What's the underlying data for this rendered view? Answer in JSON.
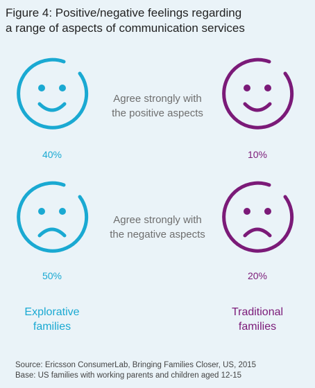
{
  "title": {
    "line1": "Figure 4: Positive/negative feelings regarding",
    "line2": "a range of aspects of communication services"
  },
  "colors": {
    "explorative": "#1aa9d2",
    "traditional": "#7b1a78",
    "label_gray": "#6e6e6e",
    "background": "#eaf3f8"
  },
  "chart_data": {
    "type": "table",
    "title": "Figure 4: Positive/negative feelings regarding a range of aspects of communication services",
    "categories": [
      "Agree strongly with the positive aspects",
      "Agree strongly with the negative aspects"
    ],
    "series": [
      {
        "name": "Explorative families",
        "values": [
          40,
          50
        ],
        "labels": [
          "40%",
          "50%"
        ],
        "icons": [
          "smiley-icon",
          "frowny-icon"
        ]
      },
      {
        "name": "Traditional families",
        "values": [
          10,
          20
        ],
        "labels": [
          "10%",
          "20%"
        ],
        "icons": [
          "smiley-icon",
          "frowny-icon"
        ]
      }
    ]
  },
  "rows": [
    {
      "label_line1": "Agree strongly with",
      "label_line2": "the positive aspects"
    },
    {
      "label_line1": "Agree strongly with",
      "label_line2": "the negative aspects"
    }
  ],
  "groups": {
    "explorative": {
      "line1": "Explorative",
      "line2": "families"
    },
    "traditional": {
      "line1": "Traditional",
      "line2": "families"
    }
  },
  "footer": {
    "source": "Source: Ericsson ConsumerLab, Bringing Families Closer, US, 2015",
    "base": "Base: US families with working parents and children aged 12-15"
  }
}
